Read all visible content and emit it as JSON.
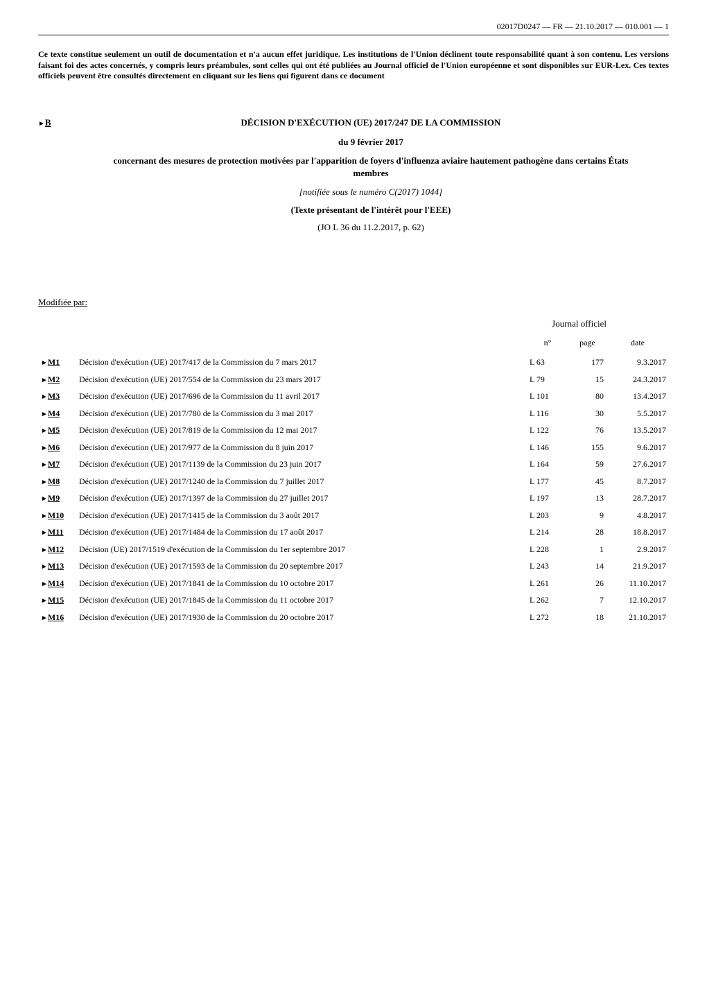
{
  "header_ref": "02017D0247 — FR — 21.10.2017 — 010.001 — 1",
  "disclaimer": "Ce texte constitue seulement un outil de documentation et n'a aucun effet juridique. Les institutions de l'Union déclinent toute responsabilité quant à son contenu. Les versions faisant foi des actes concernés, y compris leurs préambules, sont celles qui ont été publiées au Journal officiel de l'Union européenne et sont disponibles sur EUR-Lex. Ces textes officiels peuvent être consultés directement en cliquant sur les liens qui figurent dans ce document",
  "marker_b": "B",
  "title": {
    "main": "DÉCISION D'EXÉCUTION (UE) 2017/247 DE LA COMMISSION",
    "date": "du 9 février 2017",
    "subject": "concernant des mesures de protection motivées par l'apparition de foyers d'influenza aviaire hautement pathogène dans certains États membres",
    "notif": "[notifiée sous le numéro C(2017) 1044]",
    "eee": "(Texte présentant de l'intérêt pour l'EEE)",
    "jo": "(JO L 36 du 11.2.2017, p. 62)"
  },
  "mods_header": "Modifiée par:",
  "jo_label": "Journal officiel",
  "columns": {
    "n": "n°",
    "page": "page",
    "date": "date"
  },
  "mods": [
    {
      "m": "M1",
      "desc": "Décision d'exécution (UE) 2017/417 de la Commission du 7 mars 2017",
      "n": "L 63",
      "page": "177",
      "date": "9.3.2017"
    },
    {
      "m": "M2",
      "desc": "Décision d'exécution (UE) 2017/554 de la Commission du 23 mars 2017",
      "n": "L 79",
      "page": "15",
      "date": "24.3.2017"
    },
    {
      "m": "M3",
      "desc": "Décision d'exécution (UE) 2017/696 de la Commission du 11 avril 2017",
      "n": "L 101",
      "page": "80",
      "date": "13.4.2017"
    },
    {
      "m": "M4",
      "desc": "Décision d'exécution (UE) 2017/780 de la Commission du 3 mai 2017",
      "n": "L 116",
      "page": "30",
      "date": "5.5.2017"
    },
    {
      "m": "M5",
      "desc": "Décision d'exécution (UE) 2017/819 de la Commission du 12 mai 2017",
      "n": "L 122",
      "page": "76",
      "date": "13.5.2017"
    },
    {
      "m": "M6",
      "desc": "Décision d'exécution (UE) 2017/977 de la Commission du 8 juin 2017",
      "n": "L 146",
      "page": "155",
      "date": "9.6.2017"
    },
    {
      "m": "M7",
      "desc": "Décision d'exécution (UE) 2017/1139 de la Commission du 23 juin 2017",
      "n": "L 164",
      "page": "59",
      "date": "27.6.2017"
    },
    {
      "m": "M8",
      "desc": "Décision d'exécution (UE) 2017/1240 de la Commission du 7 juillet 2017",
      "n": "L 177",
      "page": "45",
      "date": "8.7.2017"
    },
    {
      "m": "M9",
      "desc": "Décision d'exécution (UE) 2017/1397 de la Commission du 27 juillet 2017",
      "n": "L 197",
      "page": "13",
      "date": "28.7.2017"
    },
    {
      "m": "M10",
      "desc": "Décision d'exécution (UE) 2017/1415 de la Commission du 3 août 2017",
      "n": "L 203",
      "page": "9",
      "date": "4.8.2017"
    },
    {
      "m": "M11",
      "desc": "Décision d'exécution (UE) 2017/1484 de la Commission du 17 août 2017",
      "n": "L 214",
      "page": "28",
      "date": "18.8.2017"
    },
    {
      "m": "M12",
      "desc": "Décision (UE) 2017/1519 d'exécution de la Commission du 1er septembre 2017",
      "n": "L 228",
      "page": "1",
      "date": "2.9.2017"
    },
    {
      "m": "M13",
      "desc": "Décision d'exécution (UE) 2017/1593 de la Commission du 20 septembre 2017",
      "n": "L 243",
      "page": "14",
      "date": "21.9.2017"
    },
    {
      "m": "M14",
      "desc": "Décision d'exécution (UE) 2017/1841 de la Commission du 10 octobre 2017",
      "n": "L 261",
      "page": "26",
      "date": "11.10.2017"
    },
    {
      "m": "M15",
      "desc": "Décision d'exécution (UE) 2017/1845 de la Commission du 11 octobre 2017",
      "n": "L 262",
      "page": "7",
      "date": "12.10.2017"
    },
    {
      "m": "M16",
      "desc": "Décision d'exécution (UE) 2017/1930 de la Commission du 20 octobre 2017",
      "n": "L 272",
      "page": "18",
      "date": "21.10.2017"
    }
  ]
}
